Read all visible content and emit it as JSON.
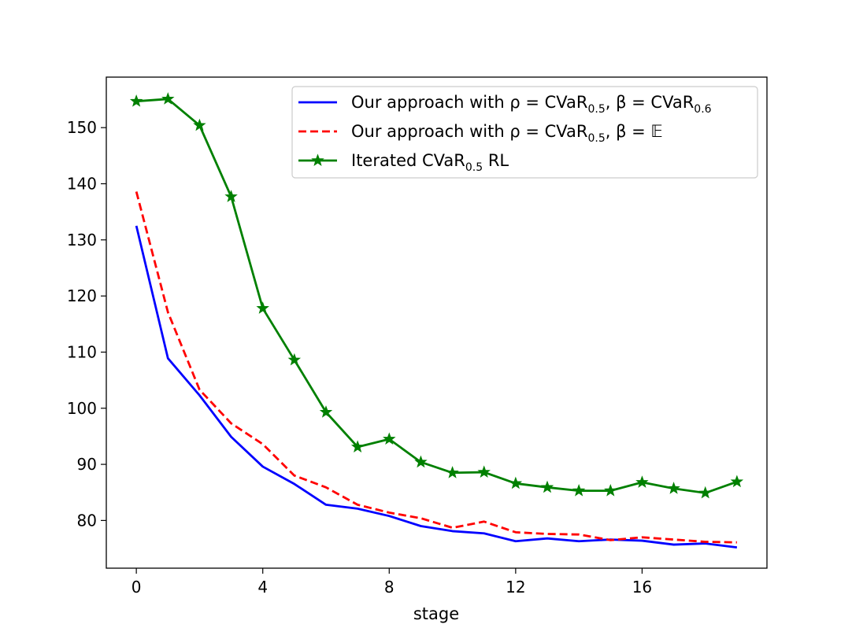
{
  "chart_data": {
    "type": "line",
    "title": "",
    "xlabel": "stage",
    "ylabel": "",
    "xlim": [
      -0.95,
      19.95
    ],
    "ylim": [
      71.5,
      159.0
    ],
    "xticks": [
      0,
      4,
      8,
      12,
      16
    ],
    "yticks": [
      80,
      90,
      100,
      110,
      120,
      130,
      140,
      150
    ],
    "grid": false,
    "legend_position": "top-right",
    "x": [
      0,
      1,
      2,
      3,
      4,
      5,
      6,
      7,
      8,
      9,
      10,
      11,
      12,
      13,
      14,
      15,
      16,
      17,
      18,
      19
    ],
    "series": [
      {
        "name": "Our approach with ρ = CVaR0.5, β = CVaR0.6",
        "legend_parts": [
          {
            "text": "Our approach with ρ = CVaR"
          },
          {
            "text": "0.5",
            "sub": true
          },
          {
            "text": ", β = CVaR"
          },
          {
            "text": "0.6",
            "sub": true
          }
        ],
        "color": "#0000ff",
        "dash": "solid",
        "marker": "none",
        "values": [
          132.5,
          108.9,
          102.3,
          94.9,
          89.6,
          86.5,
          82.8,
          82.1,
          80.8,
          79.0,
          78.1,
          77.7,
          76.3,
          76.8,
          76.3,
          76.6,
          76.4,
          75.7,
          75.9,
          75.2
        ]
      },
      {
        "name": "Our approach with ρ = CVaR0.5, β = E",
        "legend_parts": [
          {
            "text": "Our approach with ρ = CVaR"
          },
          {
            "text": "0.5",
            "sub": true
          },
          {
            "text": ", β = 𝔼"
          }
        ],
        "color": "#ff0000",
        "dash": "dashed",
        "marker": "none",
        "values": [
          138.6,
          117.1,
          103.3,
          97.3,
          93.6,
          88.0,
          85.9,
          82.8,
          81.4,
          80.4,
          78.7,
          79.8,
          77.9,
          77.6,
          77.5,
          76.5,
          77.0,
          76.6,
          76.2,
          76.1
        ]
      },
      {
        "name": "Iterated CVaR0.5 RL",
        "legend_parts": [
          {
            "text": "Iterated CVaR"
          },
          {
            "text": "0.5",
            "sub": true
          },
          {
            "text": " RL"
          }
        ],
        "color": "#008000",
        "dash": "solid",
        "marker": "star",
        "values": [
          154.7,
          155.1,
          150.4,
          137.7,
          117.8,
          108.6,
          99.3,
          93.1,
          94.5,
          90.4,
          88.5,
          88.6,
          86.6,
          85.9,
          85.3,
          85.3,
          86.8,
          85.7,
          84.9,
          86.9
        ]
      }
    ]
  }
}
